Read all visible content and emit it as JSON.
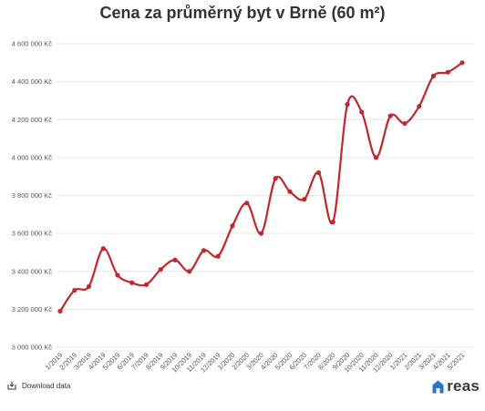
{
  "chart_data": {
    "type": "line",
    "title": "Cena za průměrný byt v Brně (60 m²)",
    "categories": [
      "1/2019",
      "2/2019",
      "3/2019",
      "4/2019",
      "5/2019",
      "6/2019",
      "7/2019",
      "8/2019",
      "9/2019",
      "10/2019",
      "11/2019",
      "12/2019",
      "1/2020",
      "2/2020",
      "3/2020",
      "4/2020",
      "5/2020",
      "6/2020",
      "7/2020",
      "8/2020",
      "9/2020",
      "10/2020",
      "11/2020",
      "12/2020",
      "1/2021",
      "2/2021",
      "3/2021",
      "4/2021",
      "5/2021"
    ],
    "series": [
      {
        "values": [
          3190000,
          3300000,
          3320000,
          3520000,
          3380000,
          3340000,
          3330000,
          3410000,
          3460000,
          3400000,
          3510000,
          3480000,
          3640000,
          3760000,
          3600000,
          3890000,
          3820000,
          3780000,
          3920000,
          3660000,
          4280000,
          4240000,
          4000000,
          4220000,
          4180000,
          4270000,
          4430000,
          4450000,
          4500000
        ],
        "color": "#c1272d"
      }
    ],
    "y_ticks": [
      "3 000 000 Kč",
      "3 200 000 Kč",
      "3 400 000 Kč",
      "3 600 000 Kč",
      "3 800 000 Kč",
      "4 000 000 Kč",
      "4 200 000 Kč",
      "4 400 000 Kč",
      "4 600 000 Kč"
    ],
    "ylim": [
      3000000,
      4600000
    ],
    "ytick_step": 200000,
    "xlabel": "",
    "ylabel": "",
    "grid": true,
    "legend": "none"
  },
  "footer": {
    "download_label": "Download data",
    "logo_text": "reas",
    "logo_color": "#1f78c8"
  }
}
